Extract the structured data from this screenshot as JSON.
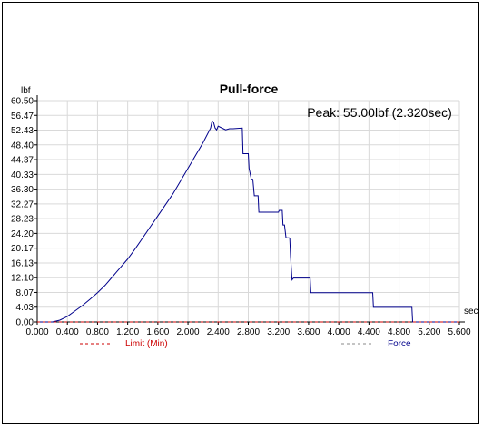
{
  "chart_data": {
    "type": "line",
    "title": "Pull-force",
    "annotation": "Peak: 55.00lbf (2.320sec)",
    "ylabel": "lbf",
    "xlabel": "sec",
    "xlim": [
      0,
      5.6
    ],
    "ylim": [
      0,
      60.5
    ],
    "grid": true,
    "legend_placement": "bottom",
    "x_ticks": [
      "0.000",
      "0.400",
      "0.800",
      "1.200",
      "1.600",
      "2.000",
      "2.400",
      "2.800",
      "3.200",
      "3.600",
      "4.000",
      "4.400",
      "4.800",
      "5.200",
      "5.600"
    ],
    "y_ticks": [
      "0.00",
      "4.03",
      "8.07",
      "12.10",
      "16.13",
      "20.17",
      "24.20",
      "28.23",
      "32.27",
      "36.30",
      "40.33",
      "44.37",
      "48.40",
      "52.43",
      "56.47",
      "60.50"
    ],
    "series": [
      {
        "name": "Force",
        "color": "#00008b",
        "x": [
          0.0,
          0.2,
          0.3,
          0.4,
          0.5,
          0.6,
          0.7,
          0.8,
          0.9,
          1.0,
          1.1,
          1.2,
          1.3,
          1.4,
          1.5,
          1.6,
          1.7,
          1.8,
          1.9,
          2.0,
          2.1,
          2.2,
          2.3,
          2.32,
          2.34,
          2.36,
          2.38,
          2.4,
          2.45,
          2.5,
          2.55,
          2.6,
          2.72,
          2.73,
          2.8,
          2.81,
          2.84,
          2.86,
          2.88,
          2.9,
          2.93,
          2.94,
          3.2,
          3.21,
          3.25,
          3.26,
          3.28,
          3.3,
          3.34,
          3.35,
          3.36,
          3.38,
          3.4,
          3.42,
          3.62,
          3.63,
          4.45,
          4.46,
          4.97,
          4.98,
          5.0,
          5.6
        ],
        "y": [
          0.0,
          0.0,
          0.5,
          1.5,
          3.0,
          4.5,
          6.2,
          8.0,
          10.0,
          12.4,
          14.8,
          17.2,
          20.0,
          23.0,
          26.0,
          29.0,
          32.0,
          35.0,
          38.5,
          42.0,
          45.5,
          49.0,
          53.0,
          55.0,
          54.5,
          53.0,
          52.5,
          53.5,
          53.0,
          52.5,
          52.8,
          52.8,
          53.0,
          46.0,
          46.0,
          42.0,
          39.0,
          39.0,
          34.5,
          34.5,
          34.5,
          30.0,
          30.0,
          30.5,
          30.5,
          26.5,
          26.5,
          23.0,
          23.0,
          22.8,
          18.0,
          11.5,
          12.0,
          12.0,
          12.0,
          8.0,
          8.0,
          4.0,
          4.0,
          0.0,
          0.0,
          0.0
        ]
      },
      {
        "name": "Limit (Min)",
        "color": "#cc0000",
        "x": [
          0.0,
          5.6
        ],
        "y": [
          0.0,
          0.0
        ]
      }
    ]
  }
}
